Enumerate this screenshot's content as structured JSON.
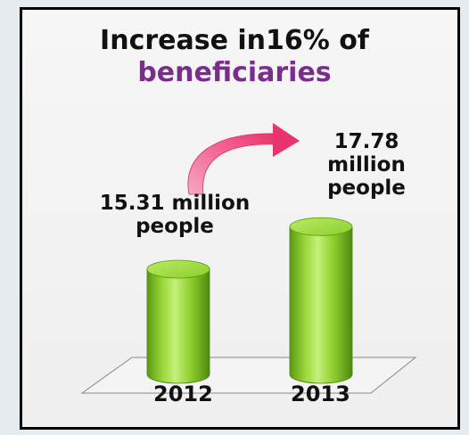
{
  "title": {
    "line1": "Increase in16% of",
    "line2": "beneficiaries"
  },
  "colors": {
    "bar_main": "#8ccf2e",
    "bar_dark": "#5a9a12",
    "bar_light": "#c7ef7a",
    "arrow": "#f0427a",
    "title_accent": "#7b2d8e"
  },
  "chart_data": {
    "type": "bar",
    "categories": [
      "2012",
      "2013"
    ],
    "values": [
      15.31,
      17.78
    ],
    "data_labels": [
      [
        "15.31 million",
        "people"
      ],
      [
        "17.78",
        "million",
        "people"
      ]
    ],
    "title": "Increase in16% of beneficiaries",
    "xlabel": "",
    "ylabel": "",
    "grid": false,
    "style": "3d-cylinder",
    "annotation": "curved-arrow-from-2012-to-2013"
  }
}
